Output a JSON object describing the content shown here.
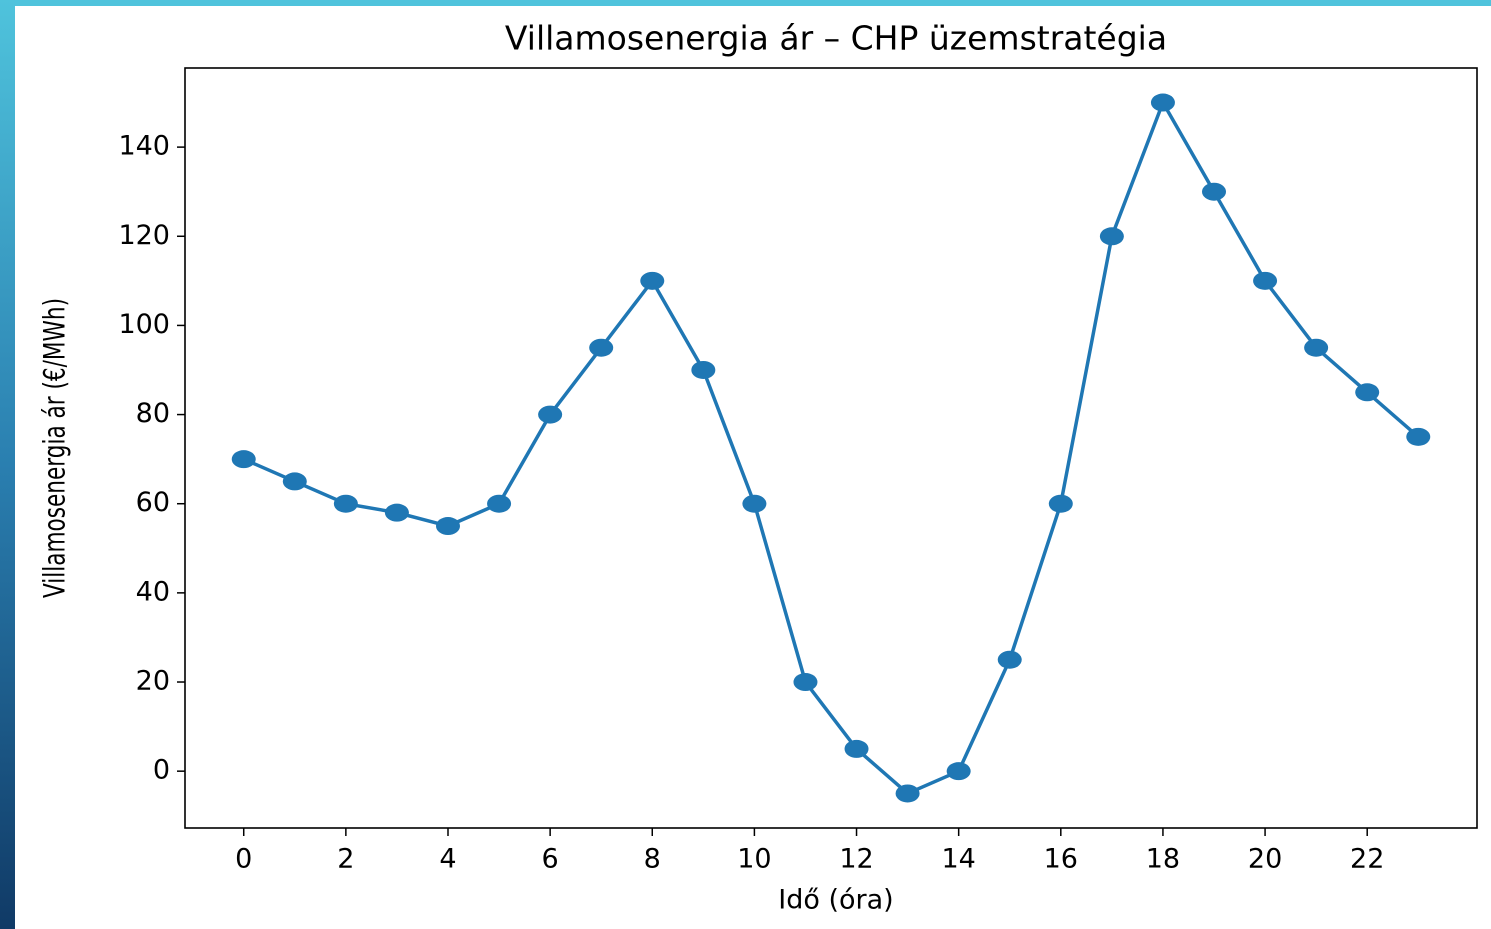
{
  "chart_data": {
    "type": "line",
    "title": "Villamosenergia ár – CHP üzemstratégia",
    "x_label": "Idő (óra)",
    "y_label": "Villamosenergia ár (€/MWh)",
    "x": [
      0,
      1,
      2,
      3,
      4,
      5,
      6,
      7,
      8,
      9,
      10,
      11,
      12,
      13,
      14,
      15,
      16,
      17,
      18,
      19,
      20,
      21,
      22,
      23
    ],
    "values": [
      70,
      65,
      60,
      58,
      55,
      60,
      80,
      95,
      110,
      90,
      60,
      20,
      5,
      -5,
      0,
      25,
      60,
      120,
      150,
      130,
      110,
      95,
      85,
      75
    ],
    "color": "#1f77b4",
    "xlim": [
      -1.15,
      24.15
    ],
    "xticks": [
      0,
      2,
      4,
      6,
      8,
      10,
      12,
      14,
      16,
      18,
      20,
      22
    ],
    "ylim": [
      -12.75,
      157.75
    ],
    "yticks": [
      0,
      20,
      40,
      60,
      80,
      100,
      120,
      140
    ],
    "grid": false
  }
}
